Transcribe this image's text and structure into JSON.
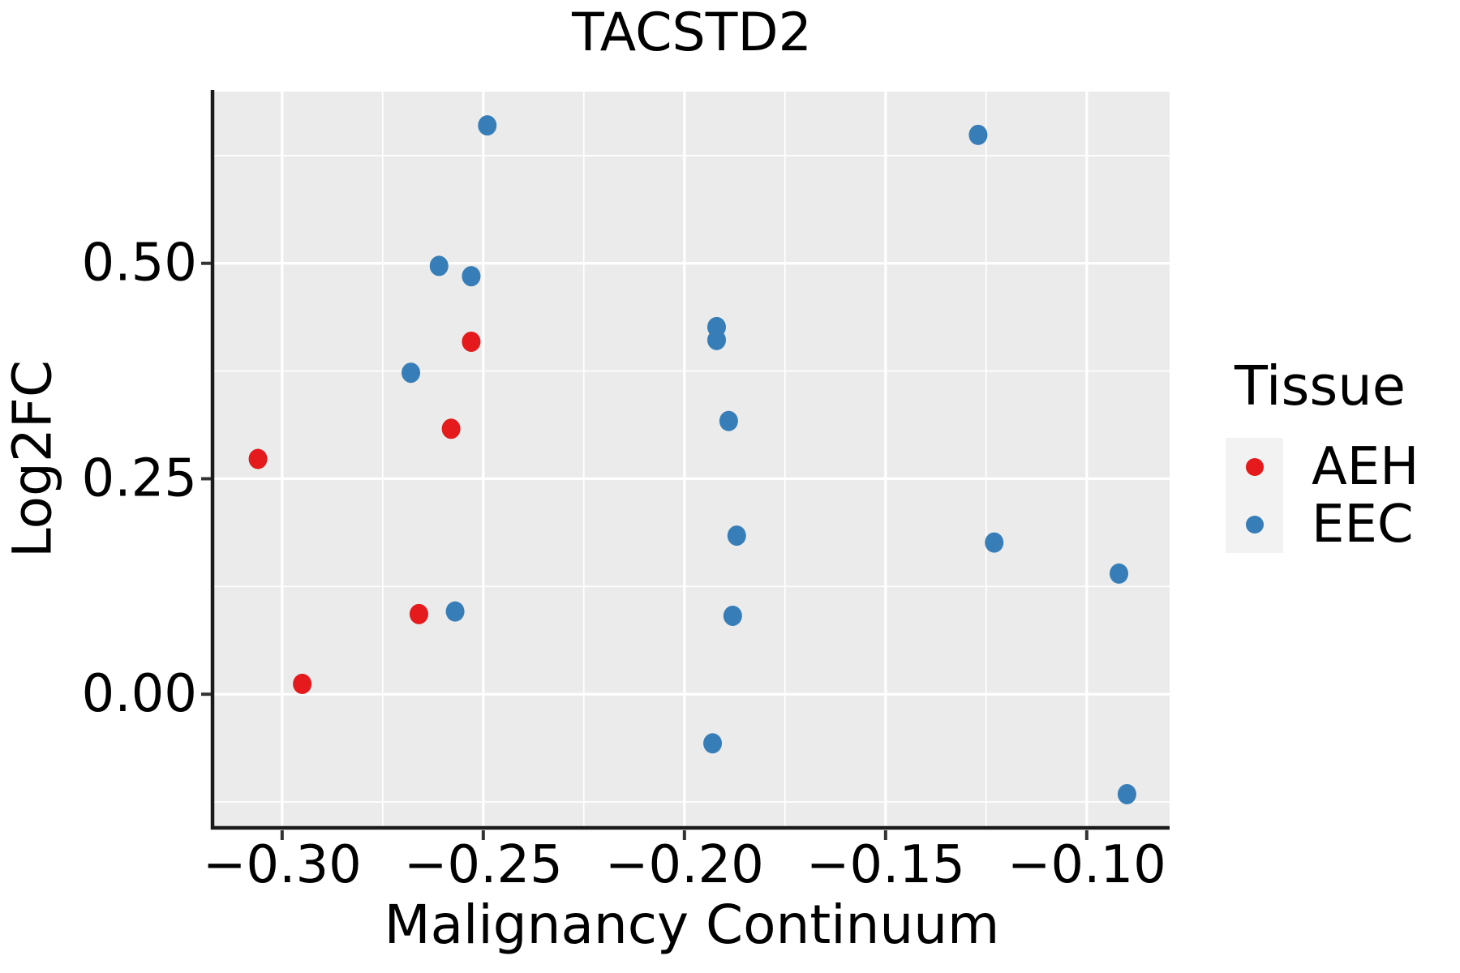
{
  "chart_data": {
    "type": "scatter",
    "title": "TACSTD2",
    "xlabel": "Malignancy Continuum",
    "ylabel": "Log2FC",
    "xlim": [
      -0.3169,
      -0.0794
    ],
    "ylim": [
      -0.1532,
      0.6992
    ],
    "x_ticks": [
      {
        "value": -0.3,
        "label": "−0.30"
      },
      {
        "value": -0.25,
        "label": "−0.25"
      },
      {
        "value": -0.2,
        "label": "−0.20"
      },
      {
        "value": -0.15,
        "label": "−0.15"
      },
      {
        "value": -0.1,
        "label": "−0.10"
      }
    ],
    "y_ticks": [
      {
        "value": 0.0,
        "label": "0.00"
      },
      {
        "value": 0.25,
        "label": "0.25"
      },
      {
        "value": 0.5,
        "label": "0.50"
      }
    ],
    "x_minor": [
      -0.275,
      -0.225,
      -0.175,
      -0.125
    ],
    "y_minor": [
      -0.125,
      0.125,
      0.375,
      0.625
    ],
    "grid": "major and minor white gridlines on grey panel",
    "legend_position": "right",
    "legend": {
      "title": "Tissue",
      "entries": [
        {
          "label": "AEH",
          "color": "#E41A1C"
        },
        {
          "label": "EEC",
          "color": "#377EB8"
        }
      ]
    },
    "series": [
      {
        "name": "AEH",
        "color": "#E41A1C",
        "points": [
          [
            -0.306,
            0.273
          ],
          [
            -0.295,
            0.012
          ],
          [
            -0.266,
            0.093
          ],
          [
            -0.258,
            0.308
          ],
          [
            -0.253,
            0.409
          ]
        ]
      },
      {
        "name": "EEC",
        "color": "#377EB8",
        "points": [
          [
            -0.268,
            0.373
          ],
          [
            -0.261,
            0.497
          ],
          [
            -0.257,
            0.096
          ],
          [
            -0.253,
            0.485
          ],
          [
            -0.249,
            0.66
          ],
          [
            -0.193,
            -0.057
          ],
          [
            -0.192,
            0.426
          ],
          [
            -0.192,
            0.411
          ],
          [
            -0.189,
            0.317
          ],
          [
            -0.188,
            0.091
          ],
          [
            -0.187,
            0.184
          ],
          [
            -0.127,
            0.649
          ],
          [
            -0.123,
            0.176
          ],
          [
            -0.092,
            0.14
          ],
          [
            -0.09,
            -0.116
          ]
        ]
      }
    ],
    "colors": {
      "panel_bg": "#EBEBEB",
      "grid": "#FFFFFF",
      "axis_line": "#1A1A1A",
      "tick": "#333333",
      "text": "#000000",
      "legend_key_bg": "#F2F2F2"
    }
  }
}
